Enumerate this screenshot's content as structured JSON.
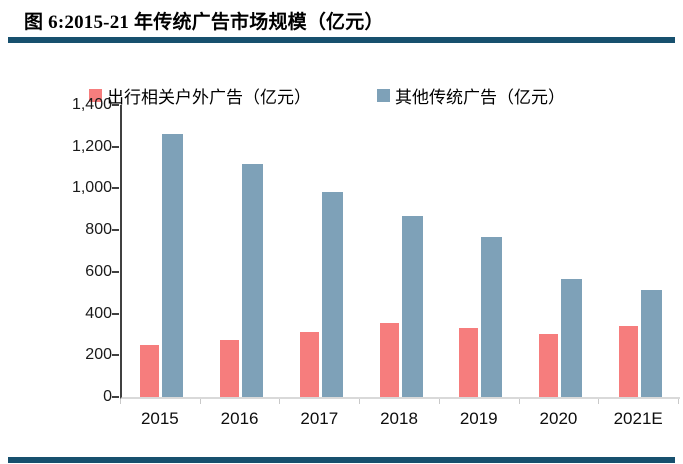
{
  "figure": {
    "title": "图 6:2015-21 年传统广告市场规模（亿元）",
    "accent_color": "#17506E"
  },
  "chart_data": {
    "type": "bar",
    "title": "图 6:2015-21 年传统广告市场规模（亿元）",
    "categories": [
      "2015",
      "2016",
      "2017",
      "2018",
      "2019",
      "2020",
      "2021E"
    ],
    "series": [
      {
        "name": "出行相关户外广告（亿元）",
        "color": "#F67D7D",
        "values": [
          250,
          275,
          310,
          355,
          330,
          300,
          340
        ]
      },
      {
        "name": "其他传统广告（亿元）",
        "color": "#7EA1B8",
        "values": [
          1260,
          1115,
          985,
          870,
          765,
          565,
          515
        ]
      }
    ],
    "xlabel": "",
    "ylabel": "",
    "ylim": [
      0,
      1400
    ],
    "ytick_step": 200,
    "ytick_labels": [
      "1,400",
      "1,200",
      "1,000",
      "800",
      "600",
      "400",
      "200",
      "0"
    ],
    "grid": false,
    "legend_position": "top"
  }
}
